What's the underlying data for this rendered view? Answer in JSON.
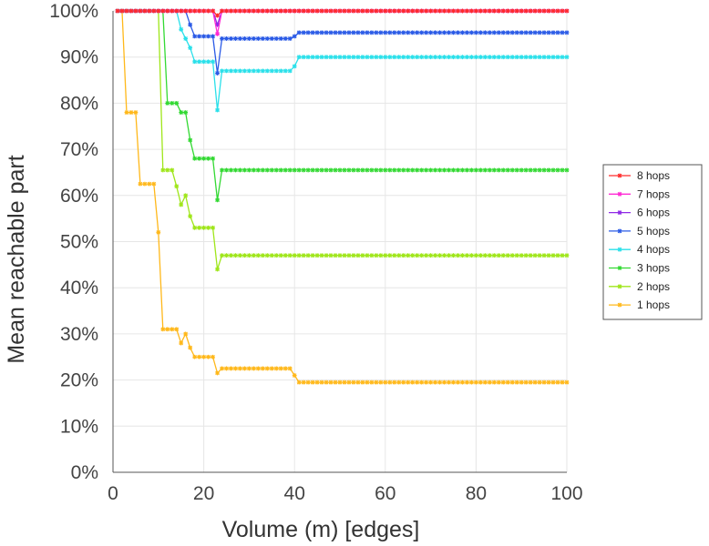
{
  "chart_data": {
    "type": "line",
    "title": "",
    "xlabel": "Volume (m) [edges]",
    "ylabel": "Mean reachable part",
    "xlim": [
      0,
      100
    ],
    "ylim": [
      0,
      100
    ],
    "x_ticks": [
      0,
      20,
      40,
      60,
      80,
      100
    ],
    "y_ticks": [
      0,
      10,
      20,
      30,
      40,
      50,
      60,
      70,
      80,
      90,
      100
    ],
    "x_tick_labels": [
      "0",
      "20",
      "40",
      "60",
      "80",
      "100"
    ],
    "y_tick_labels": [
      "0%",
      "10%",
      "20%",
      "30%",
      "40%",
      "50%",
      "60%",
      "70%",
      "80%",
      "90%",
      "100%"
    ],
    "grid": true,
    "legend_position": "right",
    "series": [
      {
        "name": "8 hops",
        "color": "#ff2a2a",
        "points": [
          [
            1,
            100
          ],
          [
            22,
            100
          ],
          [
            23,
            99
          ],
          [
            24,
            100
          ],
          [
            100,
            100
          ]
        ]
      },
      {
        "name": "7 hops",
        "color": "#ff2ad4",
        "points": [
          [
            1,
            100
          ],
          [
            22,
            100
          ],
          [
            23,
            95
          ],
          [
            24,
            100
          ],
          [
            100,
            100
          ]
        ]
      },
      {
        "name": "6 hops",
        "color": "#8f2ae6",
        "points": [
          [
            1,
            100
          ],
          [
            22,
            100
          ],
          [
            23,
            97
          ],
          [
            24,
            100
          ],
          [
            100,
            100
          ]
        ]
      },
      {
        "name": "5 hops",
        "color": "#2a5ae6",
        "points": [
          [
            1,
            100
          ],
          [
            16,
            100
          ],
          [
            17,
            97
          ],
          [
            18,
            94.5
          ],
          [
            22,
            94.5
          ],
          [
            23,
            86.5
          ],
          [
            24,
            94
          ],
          [
            39,
            94
          ],
          [
            40,
            94.5
          ],
          [
            41,
            95.3
          ],
          [
            100,
            95.3
          ]
        ]
      },
      {
        "name": "4 hops",
        "color": "#2ae0ea",
        "points": [
          [
            1,
            100
          ],
          [
            14,
            100
          ],
          [
            15,
            96
          ],
          [
            17,
            92
          ],
          [
            18,
            89
          ],
          [
            22,
            89
          ],
          [
            23,
            78.5
          ],
          [
            24,
            87
          ],
          [
            39,
            87
          ],
          [
            40,
            88
          ],
          [
            41,
            90
          ],
          [
            100,
            90
          ]
        ]
      },
      {
        "name": "3 hops",
        "color": "#33d933",
        "points": [
          [
            1,
            100
          ],
          [
            11,
            100
          ],
          [
            12,
            80
          ],
          [
            14,
            80
          ],
          [
            15,
            78
          ],
          [
            16,
            78
          ],
          [
            17,
            72
          ],
          [
            18,
            68
          ],
          [
            22,
            68
          ],
          [
            23,
            59
          ],
          [
            24,
            65.5
          ],
          [
            100,
            65.5
          ]
        ]
      },
      {
        "name": "2 hops",
        "color": "#9fe61a",
        "points": [
          [
            1,
            100
          ],
          [
            10,
            100
          ],
          [
            11,
            65.5
          ],
          [
            13,
            65.5
          ],
          [
            14,
            62
          ],
          [
            15,
            58
          ],
          [
            16,
            60
          ],
          [
            17,
            55.5
          ],
          [
            18,
            53
          ],
          [
            22,
            53
          ],
          [
            23,
            44
          ],
          [
            24,
            47
          ],
          [
            100,
            47
          ]
        ]
      },
      {
        "name": "1 hops",
        "color": "#ffb81a",
        "points": [
          [
            1,
            100
          ],
          [
            2,
            100
          ],
          [
            3,
            78
          ],
          [
            5,
            78
          ],
          [
            6,
            62.5
          ],
          [
            9,
            62.5
          ],
          [
            10,
            52
          ],
          [
            11,
            31
          ],
          [
            14,
            31
          ],
          [
            15,
            28
          ],
          [
            16,
            30
          ],
          [
            17,
            27
          ],
          [
            18,
            25
          ],
          [
            22,
            25
          ],
          [
            23,
            21.5
          ],
          [
            24,
            22.5
          ],
          [
            39,
            22.5
          ],
          [
            40,
            21
          ],
          [
            41,
            19.5
          ],
          [
            100,
            19.5
          ]
        ]
      }
    ]
  }
}
